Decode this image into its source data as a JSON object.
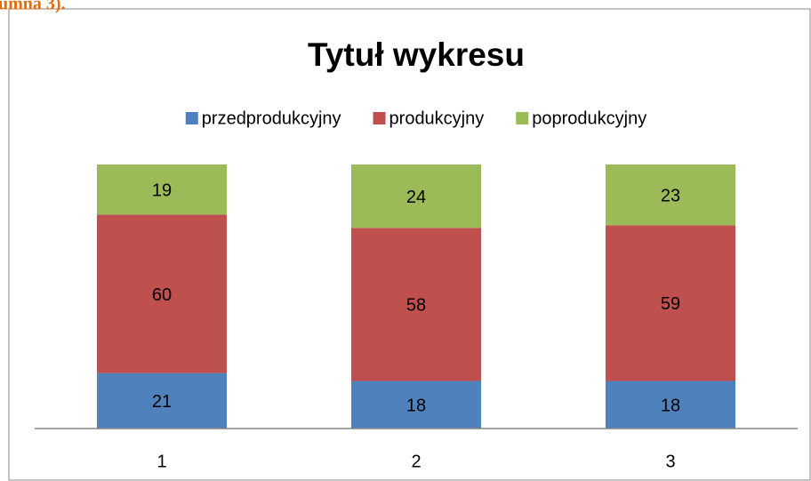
{
  "caption": "umna 3).",
  "chart_data": {
    "type": "stacked_bar",
    "title": "Tytuł wykresu",
    "categories": [
      "1",
      "2",
      "3"
    ],
    "series": [
      {
        "name": "przedprodukcyjny",
        "color": "#4f81bd",
        "values": [
          21,
          18,
          18
        ]
      },
      {
        "name": "produkcyjny",
        "color": "#c0504d",
        "values": [
          60,
          58,
          59
        ]
      },
      {
        "name": "poprodukcyjny",
        "color": "#9bbb59",
        "values": [
          19,
          24,
          23
        ]
      }
    ],
    "ylim": [
      0,
      100
    ],
    "legend": "top"
  }
}
